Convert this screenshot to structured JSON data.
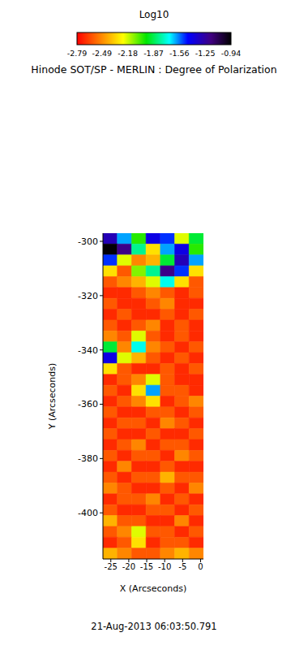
{
  "chart_data": {
    "type": "heatmap",
    "title": "Hinode SOT/SP - MERLIN : Degree of Polarization",
    "x_label": "X (Arcseconds)",
    "y_label": "Y (Arcseconds)",
    "annotations": [
      "21-Aug-2013 06:03:50.791"
    ],
    "xlim": [
      -27.2,
      0.8
    ],
    "xticks": [
      -25,
      -20,
      -15,
      -10,
      -5,
      0
    ],
    "ylim": [
      -417,
      -297
    ],
    "yticks": [
      -400,
      -380,
      -360,
      -340,
      -320,
      -300
    ],
    "x_edges": [
      -27.2,
      -23.2,
      -19.2,
      -15.2,
      -11.2,
      -7.2,
      -3.2,
      0.8
    ],
    "y_edges": [
      -297,
      -301,
      -305,
      -309,
      -313,
      -317,
      -321,
      -325,
      -329,
      -333,
      -337,
      -341,
      -345,
      -349,
      -353,
      -357,
      -361,
      -365,
      -369,
      -373,
      -377,
      -381,
      -385,
      -389,
      -393,
      -397,
      -401,
      -405,
      -409,
      -413,
      -417
    ],
    "cells": [
      [
        -1.3,
        -1.6,
        -2.0,
        -1.4,
        -1.5,
        -2.2,
        -1.9
      ],
      [
        -0.95,
        -1.2,
        -1.8,
        -2.3,
        -1.6,
        -1.4,
        -2.0
      ],
      [
        -1.5,
        -2.2,
        -2.5,
        -2.4,
        -1.9,
        -1.3,
        -1.6
      ],
      [
        -2.3,
        -2.6,
        -2.1,
        -1.8,
        -1.2,
        -1.5,
        -2.3
      ],
      [
        -2.6,
        -2.5,
        -2.4,
        -2.2,
        -1.7,
        -2.3,
        -2.6
      ],
      [
        -2.7,
        -2.7,
        -2.6,
        -2.5,
        -2.6,
        -2.7,
        -2.6
      ],
      [
        -2.6,
        -2.7,
        -2.7,
        -2.6,
        -2.5,
        -2.7,
        -2.7
      ],
      [
        -2.7,
        -2.6,
        -2.7,
        -2.7,
        -2.6,
        -2.7,
        -2.6
      ],
      [
        -2.6,
        -2.7,
        -2.6,
        -2.5,
        -2.7,
        -2.6,
        -2.7
      ],
      [
        -2.5,
        -2.6,
        -2.2,
        -2.6,
        -2.7,
        -2.6,
        -2.7
      ],
      [
        -1.9,
        -2.5,
        -1.7,
        -2.5,
        -2.6,
        -2.7,
        -2.6
      ],
      [
        -1.4,
        -2.2,
        -2.4,
        -2.6,
        -2.7,
        -2.6,
        -2.7
      ],
      [
        -2.3,
        -2.6,
        -2.7,
        -2.7,
        -2.6,
        -2.7,
        -2.6
      ],
      [
        -2.7,
        -2.6,
        -2.5,
        -2.2,
        -2.6,
        -2.7,
        -2.7
      ],
      [
        -2.6,
        -2.7,
        -2.3,
        -1.6,
        -2.6,
        -2.6,
        -2.7
      ],
      [
        -2.7,
        -2.6,
        -2.5,
        -2.3,
        -2.7,
        -2.6,
        -2.5
      ],
      [
        -2.6,
        -2.7,
        -2.7,
        -2.6,
        -2.6,
        -2.7,
        -2.6
      ],
      [
        -2.7,
        -2.6,
        -2.6,
        -2.7,
        -2.5,
        -2.6,
        -2.7
      ],
      [
        -2.6,
        -2.7,
        -2.7,
        -2.6,
        -2.7,
        -2.7,
        -2.6
      ],
      [
        -2.7,
        -2.6,
        -2.5,
        -2.7,
        -2.6,
        -2.6,
        -2.7
      ],
      [
        -2.6,
        -2.7,
        -2.6,
        -2.6,
        -2.7,
        -2.5,
        -2.6
      ],
      [
        -2.7,
        -2.5,
        -2.7,
        -2.7,
        -2.6,
        -2.7,
        -2.7
      ],
      [
        -2.6,
        -2.7,
        -2.6,
        -2.6,
        -2.4,
        -2.6,
        -2.6
      ],
      [
        -2.5,
        -2.6,
        -2.7,
        -2.7,
        -2.6,
        -2.7,
        -2.5
      ],
      [
        -2.7,
        -2.6,
        -2.6,
        -2.5,
        -2.7,
        -2.6,
        -2.7
      ],
      [
        -2.6,
        -2.7,
        -2.7,
        -2.6,
        -2.6,
        -2.7,
        -2.6
      ],
      [
        -2.4,
        -2.6,
        -2.6,
        -2.7,
        -2.7,
        -2.5,
        -2.7
      ],
      [
        -2.6,
        -2.5,
        -2.2,
        -2.6,
        -2.6,
        -2.7,
        -2.6
      ],
      [
        -2.7,
        -2.6,
        -2.3,
        -2.7,
        -2.6,
        -2.6,
        -2.7
      ],
      [
        -2.4,
        -2.5,
        -2.6,
        -2.6,
        -2.5,
        -2.4,
        -2.5
      ]
    ],
    "colorbar": {
      "title": "Log10",
      "range": [
        -2.79,
        -0.94
      ],
      "ticks": [
        -2.79,
        -2.49,
        -2.18,
        -1.87,
        -1.56,
        -1.25,
        -0.94
      ]
    }
  }
}
